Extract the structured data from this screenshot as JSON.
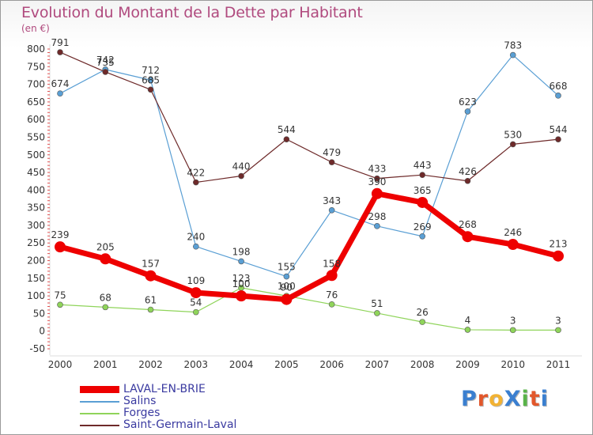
{
  "header": {
    "title": "Evolution du Montant de la Dette par Habitant",
    "unit": "(en €)"
  },
  "logo": {
    "text": "ProXiti",
    "letter_colors": [
      "#3a7fd0",
      "#e2572b",
      "#f2b233",
      "#3a7fd0",
      "#59b348",
      "#e2572b",
      "#3a7fd0"
    ]
  },
  "chart_data": {
    "type": "line",
    "title": "Evolution du Montant de la Dette par Habitant",
    "ylabel": "(en €)",
    "xlabel": "",
    "ylim": [
      -50,
      800
    ],
    "yticks": [
      -50,
      0,
      50,
      100,
      150,
      200,
      250,
      300,
      350,
      400,
      450,
      500,
      550,
      600,
      650,
      700,
      750,
      800
    ],
    "grid": false,
    "legend_position": "bottom-left",
    "x": [
      "2000",
      "2001",
      "2002",
      "2003",
      "2004",
      "2005",
      "2006",
      "2007",
      "2008",
      "2009",
      "2010",
      "2011"
    ],
    "series": [
      {
        "name": "LAVAL-EN-BRIE",
        "color": "#ee0000",
        "emphasis": true,
        "values": [
          239,
          205,
          157,
          109,
          100,
          90,
          158,
          390,
          365,
          268,
          246,
          213
        ]
      },
      {
        "name": "Salins",
        "color": "#5a9fd4",
        "values": [
          674,
          742,
          712,
          240,
          198,
          155,
          343,
          298,
          269,
          623,
          783,
          668
        ]
      },
      {
        "name": "Forges",
        "color": "#8fd45a",
        "values": [
          75,
          68,
          61,
          54,
          123,
          100,
          76,
          51,
          26,
          4,
          3,
          3
        ]
      },
      {
        "name": "Saint-Germain-Laval",
        "color": "#6e2a2a",
        "values": [
          791,
          735,
          685,
          422,
          440,
          544,
          479,
          433,
          443,
          426,
          530,
          544
        ]
      }
    ]
  }
}
